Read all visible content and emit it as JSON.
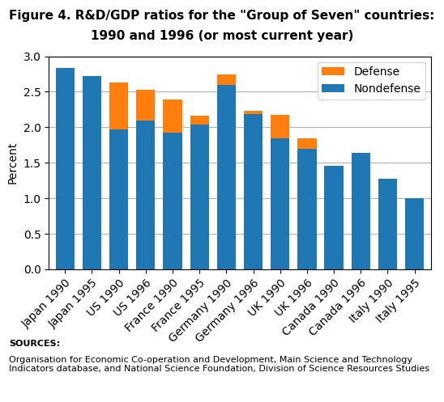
{
  "chart_data": {
    "type": "bar",
    "title": "Figure 4. R&D/GDP ratios for the \"Group of Seven\" countries:",
    "subtitle": "1990 and 1996 (or most current year)",
    "y_label": "Percent",
    "categories": [
      "Japan 1990",
      "Japan 1995",
      "US 1990",
      "US 1996",
      "France 1990",
      "France 1995",
      "Germany 1990",
      "Germany 1996",
      "UK 1990",
      "UK 1996",
      "Canada 1990",
      "Canada 1996",
      "Italy 1990",
      "Italy 1995"
    ],
    "series": [
      {
        "name": "Nondefense",
        "values": [
          2.84,
          2.72,
          1.97,
          2.09,
          1.93,
          2.04,
          2.6,
          2.19,
          1.84,
          1.7,
          1.46,
          1.64,
          1.28,
          1.0
        ]
      },
      {
        "name": "Defense",
        "values": [
          0.0,
          0.0,
          0.66,
          0.44,
          0.46,
          0.12,
          0.14,
          0.04,
          0.34,
          0.14,
          0.0,
          0.0,
          0.0,
          0.0
        ]
      }
    ],
    "stacked": true,
    "ylim": [
      0.0,
      3.0
    ],
    "yticks": [
      {
        "value": 0.0,
        "label": "0.0"
      },
      {
        "value": 0.5,
        "label": "0.5"
      },
      {
        "value": 1.0,
        "label": "1.0"
      },
      {
        "value": 1.5,
        "label": "1.5"
      },
      {
        "value": 2.0,
        "label": "2.0"
      },
      {
        "value": 2.5,
        "label": "2.5"
      },
      {
        "value": 3.0,
        "label": "3.0"
      }
    ],
    "grid": true,
    "legend": "upper right",
    "annotations": [
      "SOURCES:",
      "Organisation for Economic Co-operation and Development, Main Science and Technology Indicators database, and National Science Foundation, Division of Science Resources Studies"
    ]
  }
}
